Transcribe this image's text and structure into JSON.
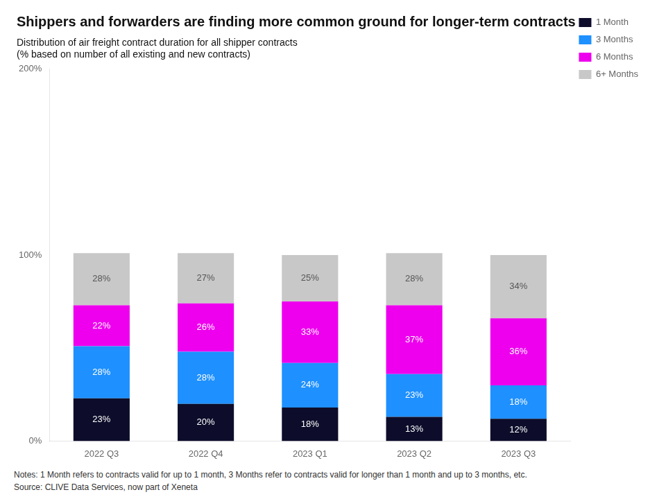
{
  "chart_data": {
    "type": "bar",
    "stacked": true,
    "title": "Shippers and forwarders are finding more common ground for longer-term contracts",
    "subtitle": [
      "Distribution of air freight contract duration for all shipper contracts",
      "(% based on number of all existing and new contracts)"
    ],
    "annotations": [
      "Notes:  1 Month refers to contracts valid for up to 1 month, 3 Months refer  to contracts valid for longer than 1 month and up to 3 months, etc.",
      "Source:  CLIVE Data Services, now part of Xeneta"
    ],
    "categories": [
      "2022 Q3",
      "2022 Q4",
      "2023 Q1",
      "2023 Q2",
      "2023 Q3"
    ],
    "series": [
      {
        "name": "1 Month",
        "color": "#0d0d2b",
        "values": [
          23,
          20,
          18,
          13,
          12
        ],
        "value_labels": [
          "23%",
          "20%",
          "18%",
          "13%",
          "12%"
        ]
      },
      {
        "name": "3 Months",
        "color": "#1e90ff",
        "values": [
          28,
          28,
          24,
          23,
          18
        ],
        "value_labels": [
          "28%",
          "28%",
          "24%",
          "23%",
          "18%"
        ]
      },
      {
        "name": "6 Months",
        "color": "#ee00ee",
        "values": [
          22,
          26,
          33,
          37,
          36
        ],
        "value_labels": [
          "22%",
          "26%",
          "33%",
          "37%",
          "36%"
        ]
      },
      {
        "name": "6+ Months",
        "color": "#c8c8c8",
        "values": [
          28,
          27,
          25,
          28,
          34
        ],
        "value_labels": [
          "28%",
          "27%",
          "25%",
          "28%",
          "34%"
        ]
      }
    ],
    "ylim": [
      0,
      200
    ],
    "yticks": [
      {
        "value": 0,
        "label": "0%"
      },
      {
        "value": 100,
        "label": "100%"
      },
      {
        "value": 200,
        "label": "200%"
      }
    ],
    "grid": false,
    "legend": "upper right",
    "data_labels": true
  }
}
